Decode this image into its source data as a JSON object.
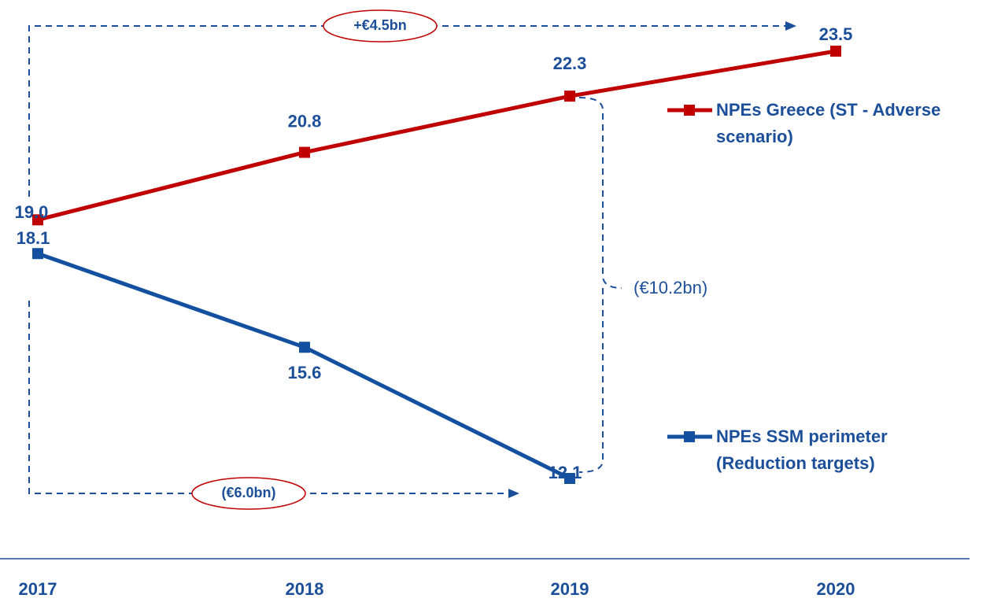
{
  "chart_data": {
    "type": "line",
    "categories": [
      "2017",
      "2018",
      "2019",
      "2020"
    ],
    "series": [
      {
        "name": "NPEs Greece (ST - Adverse scenario)",
        "color": "#c00000",
        "values": [
          19.0,
          20.8,
          22.3,
          23.5
        ],
        "value_labels": [
          "19.0",
          "20.8",
          "22.3",
          "23.5"
        ]
      },
      {
        "name": "NPEs SSM perimeter (Reduction targets)",
        "color": "#1351a0",
        "values": [
          18.1,
          15.6,
          12.1,
          null
        ],
        "value_labels": [
          "18.1",
          "15.6",
          "12.1",
          null
        ]
      }
    ],
    "annotations": [
      "+€4.5bn",
      "(€6.0bn)",
      "(€10.2bn)"
    ]
  }
}
